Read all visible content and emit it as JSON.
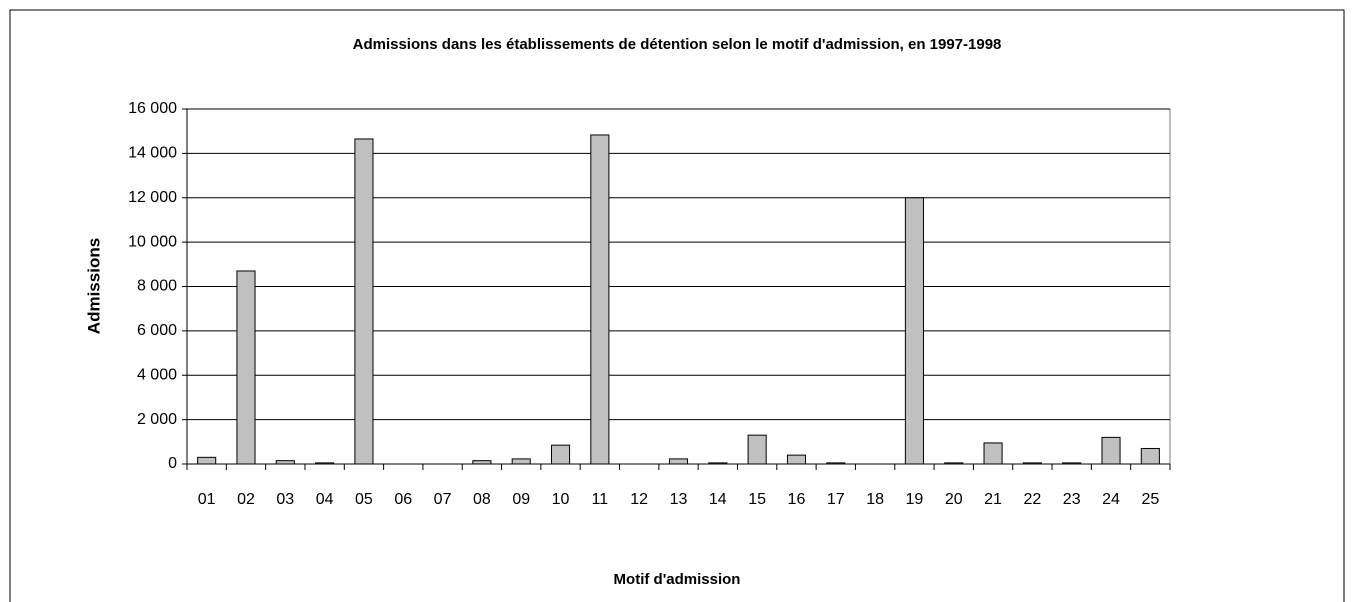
{
  "chart_data": {
    "type": "bar",
    "title": "Admissions dans les établissements de détention selon le motif d'admission, en 1997-1998",
    "x_label": "Motif d'admission",
    "y_label": "Admissions",
    "categories": [
      "01",
      "02",
      "03",
      "04",
      "05",
      "06",
      "07",
      "08",
      "09",
      "10",
      "11",
      "12",
      "13",
      "14",
      "15",
      "16",
      "17",
      "18",
      "19",
      "20",
      "21",
      "22",
      "23",
      "24",
      "25"
    ],
    "values": [
      300,
      8700,
      150,
      50,
      14650,
      0,
      0,
      150,
      230,
      850,
      14830,
      0,
      230,
      50,
      1300,
      400,
      50,
      0,
      12000,
      50,
      950,
      50,
      50,
      1200,
      700
    ],
    "color": "#c0c0c0",
    "ylim": [
      0,
      16000
    ],
    "yticks": [
      0,
      {
        "value": 2000,
        "label": "2 000"
      },
      {
        "value": 4000,
        "label": "4 000"
      },
      {
        "value": 6000,
        "label": "6 000"
      },
      {
        "value": 8000,
        "label": "8 000"
      },
      {
        "value": 10000,
        "label": "10 000"
      },
      {
        "value": 12000,
        "label": "12 000"
      },
      {
        "value": 14000,
        "label": "14 000"
      },
      {
        "value": 16000,
        "label": "16 000"
      }
    ],
    "grid": true
  }
}
